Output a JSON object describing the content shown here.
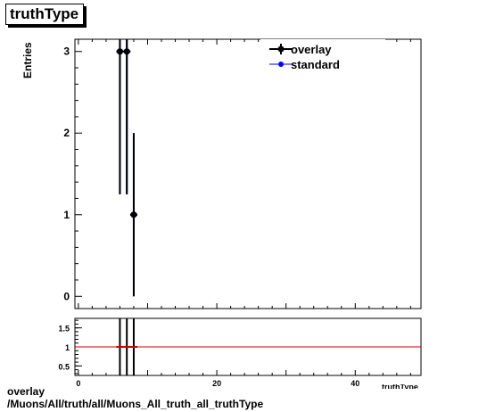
{
  "title": "truthType",
  "footer": {
    "line1": "overlay",
    "line2": "/Muons/All/truth/all/Muons_All_truth_all_truthType"
  },
  "colors": {
    "overlay": "#000000",
    "standard": "#0000ff",
    "ratio_line": "#cc0000"
  },
  "chart_data": [
    {
      "type": "scatter",
      "ylabel": "Entries",
      "xlim": [
        -0.5,
        49.5
      ],
      "ylim": [
        -0.15,
        3.15
      ],
      "y_ticks": [
        0,
        1,
        2,
        3
      ],
      "y_tick_labels": [
        "0",
        "1",
        "2",
        "3"
      ],
      "legend": {
        "position": "top-right",
        "entries": [
          "overlay",
          "standard"
        ]
      },
      "series": [
        {
          "name": "overlay",
          "x": [
            6,
            7,
            8
          ],
          "y": [
            3,
            3,
            1
          ],
          "yerr_low": [
            1.75,
            1.75,
            1
          ],
          "yerr_high": [
            2.3,
            2.3,
            1
          ]
        },
        {
          "name": "standard",
          "x": [
            6,
            7,
            8
          ],
          "y": [
            3,
            3,
            1
          ],
          "yerr_low": [
            1.75,
            1.75,
            1
          ],
          "yerr_high": [
            2.3,
            2.3,
            1
          ]
        }
      ]
    },
    {
      "type": "line",
      "xlabel": "truthType",
      "xlim": [
        -0.5,
        49.5
      ],
      "ylim": [
        0.25,
        1.75
      ],
      "x_ticks": [
        0,
        20,
        40
      ],
      "x_tick_labels": [
        "0",
        "20",
        "40"
      ],
      "y_ticks": [
        0.5,
        1,
        1.5
      ],
      "y_tick_labels": [
        "0.5",
        "1",
        "1.5"
      ],
      "reference_line": 1,
      "series": [
        {
          "x": [
            6,
            7,
            8
          ],
          "y": [
            1,
            1,
            1
          ],
          "yerr_low": [
            1,
            1,
            1
          ],
          "yerr_high": [
            1,
            1,
            1
          ]
        }
      ]
    }
  ]
}
